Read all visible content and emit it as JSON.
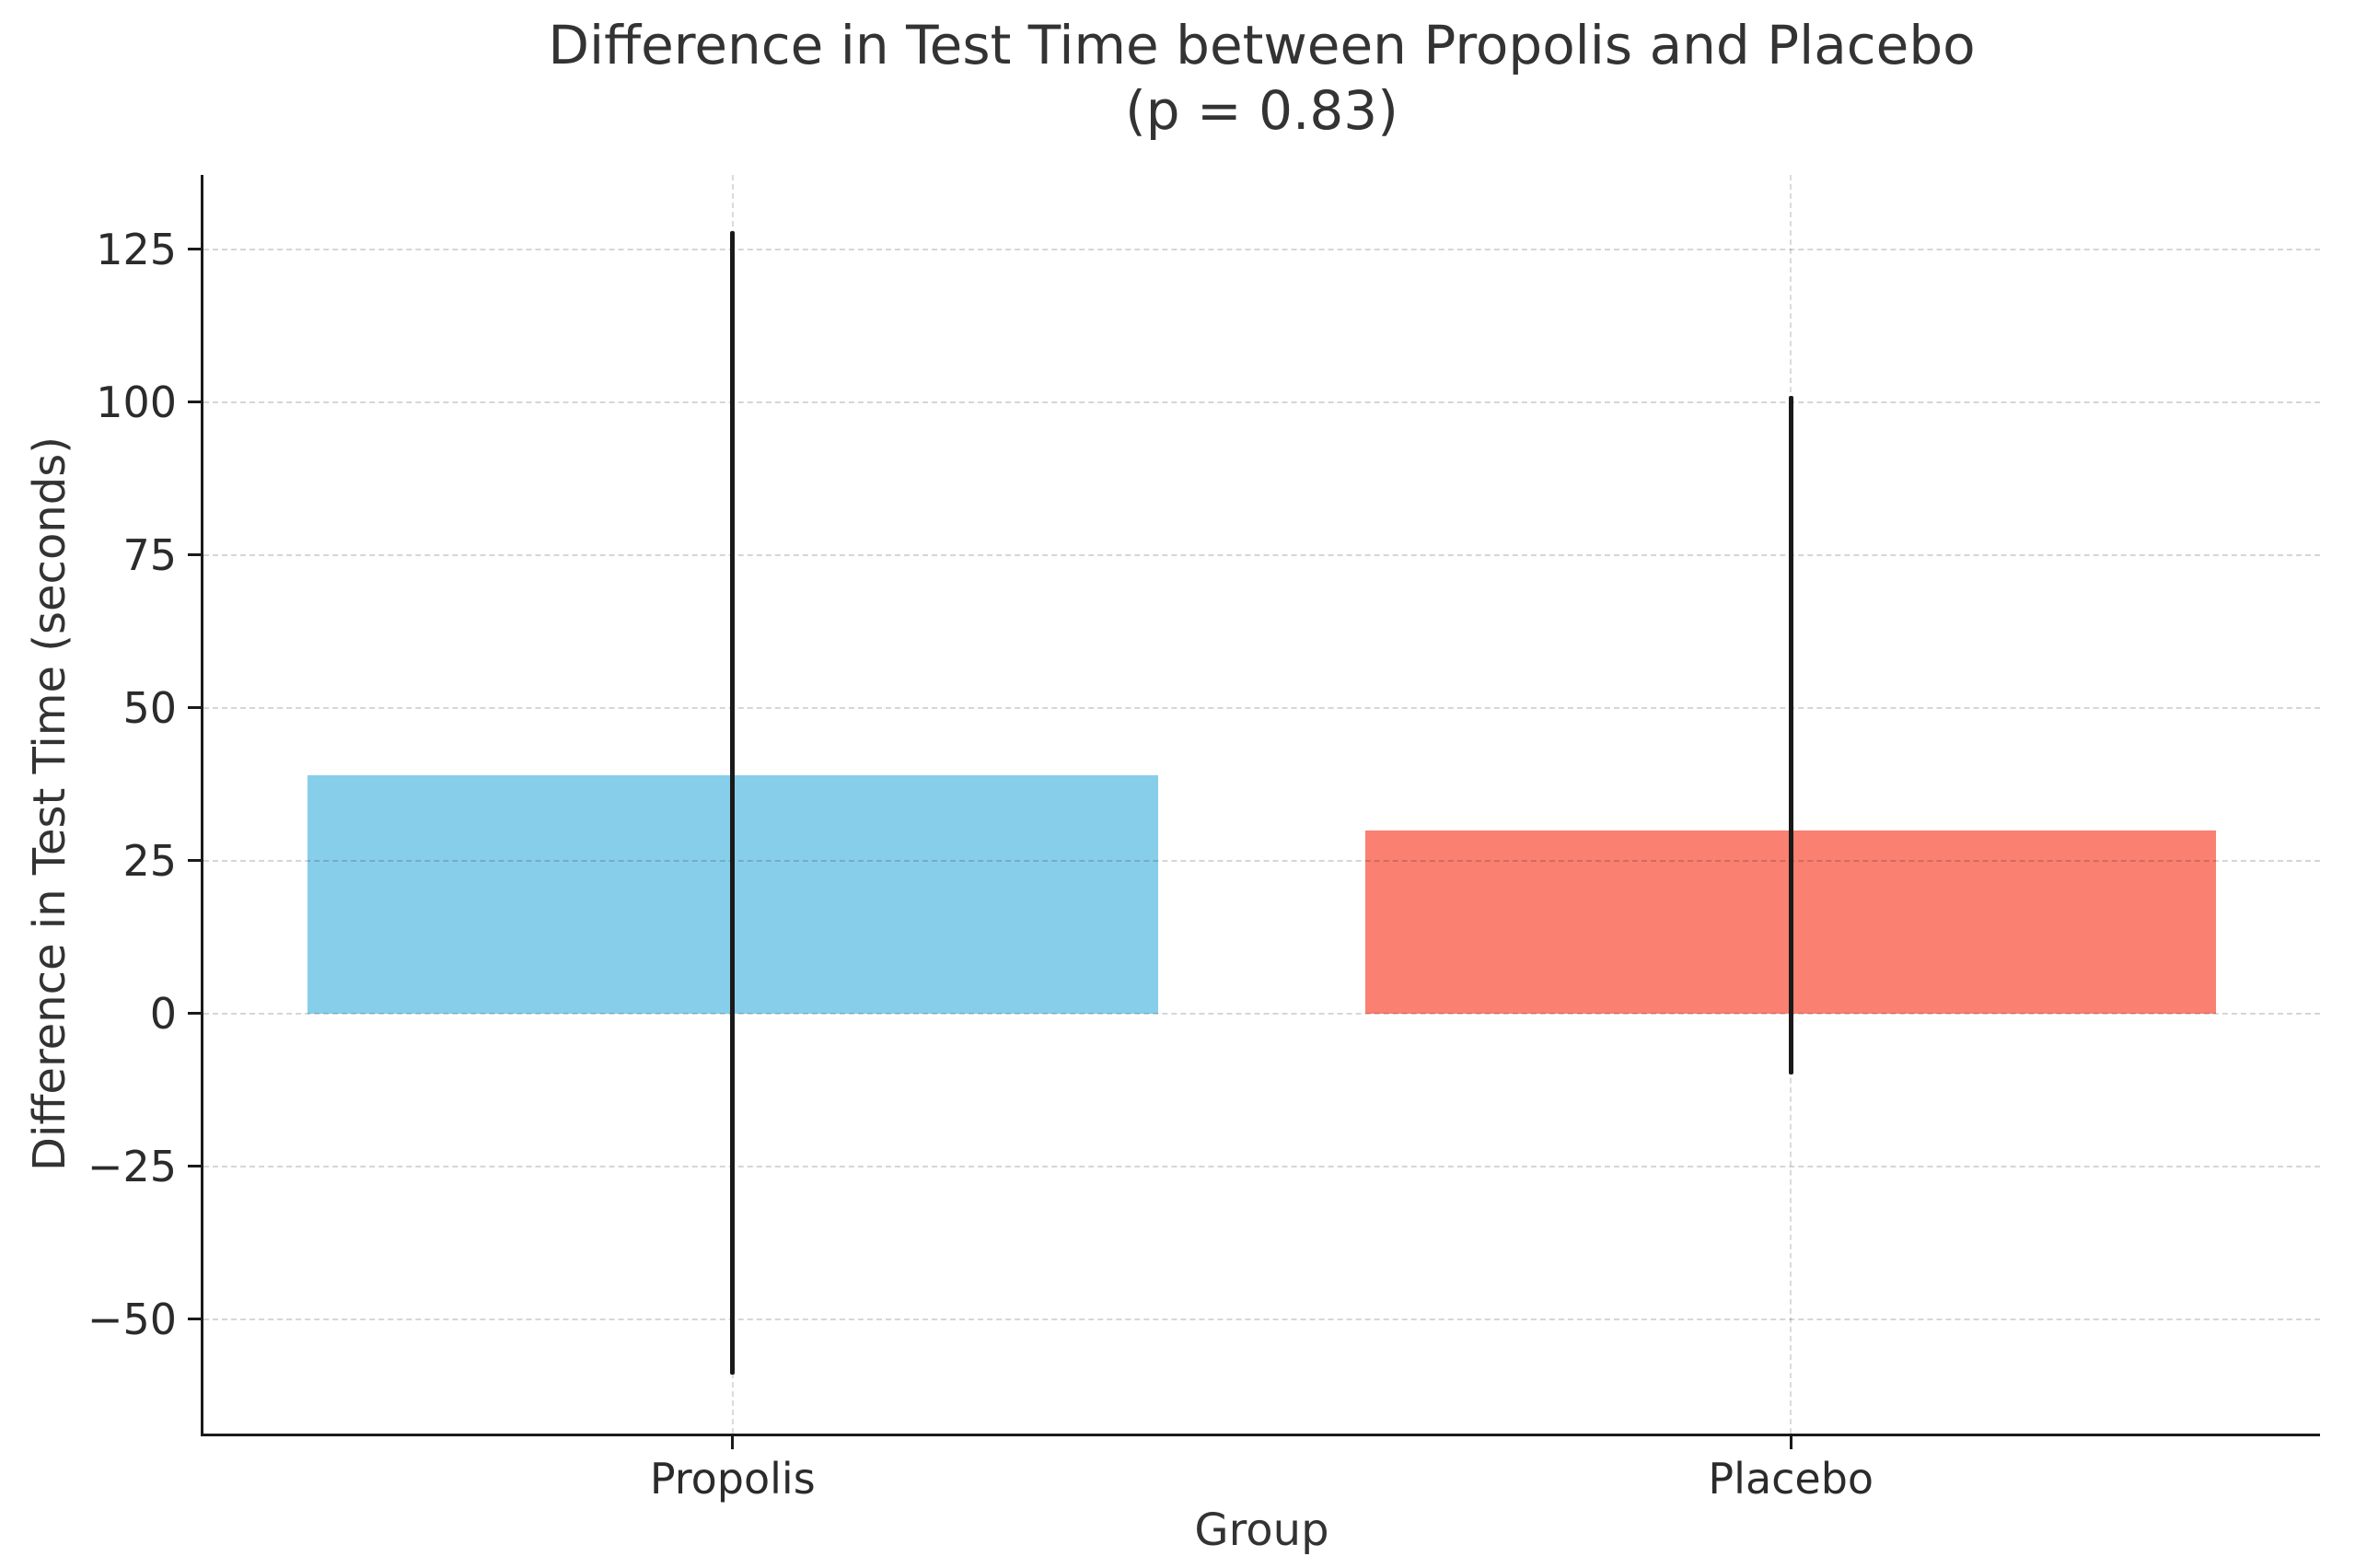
{
  "chart_data": {
    "type": "bar",
    "title": "Difference in Test Time between Propolis and Placebo",
    "subtitle": "(p = 0.83)",
    "xlabel": "Group",
    "ylabel": "Difference in Test Time (seconds)",
    "categories": [
      "Propolis",
      "Placebo"
    ],
    "values": [
      39,
      30
    ],
    "error_low": [
      -59,
      -10
    ],
    "error_high": [
      128,
      101
    ],
    "bar_colors": [
      "#87CEEB",
      "#FA8072"
    ],
    "bar_width_frac": 0.402,
    "yticks": [
      125,
      100,
      75,
      50,
      25,
      0,
      -25,
      -50
    ],
    "ytick_labels": [
      "125",
      "100",
      "75",
      "50",
      "25",
      "0",
      "−25",
      "−50"
    ],
    "ylim": [
      -68.7,
      137.2
    ],
    "xlim_note": "two categories centered at 25% and 75% of axis width",
    "grid": {
      "on": true,
      "style": "dashed",
      "color": "#d6d6d6",
      "vertical_at_categories": true
    },
    "legend": "none",
    "error_bar_color": "#1a1a1a",
    "spine_color": "#1a1a1a",
    "text_color": "#333333",
    "background_color": "#ffffff"
  }
}
